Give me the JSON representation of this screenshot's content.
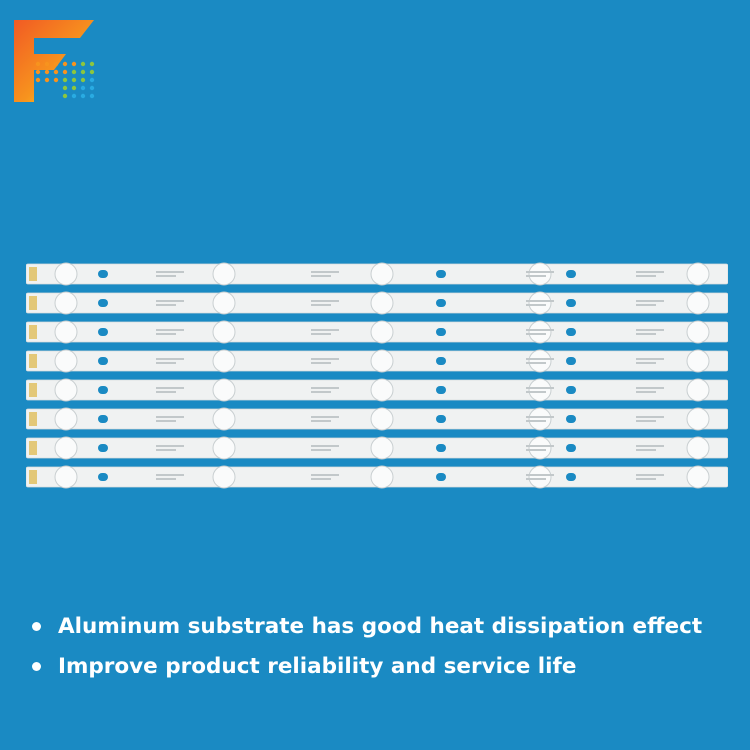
{
  "brand": {
    "logo_letter": "F",
    "logo_colors": [
      "#f15a24",
      "#f7931e",
      "#fcee21"
    ]
  },
  "product": {
    "strip_count": 8,
    "led_count_per_strip": 5,
    "strip_color": "#f0f2f2"
  },
  "features": [
    "Aluminum substrate has good heat dissipation effect",
    "Improve product reliability and service life"
  ]
}
